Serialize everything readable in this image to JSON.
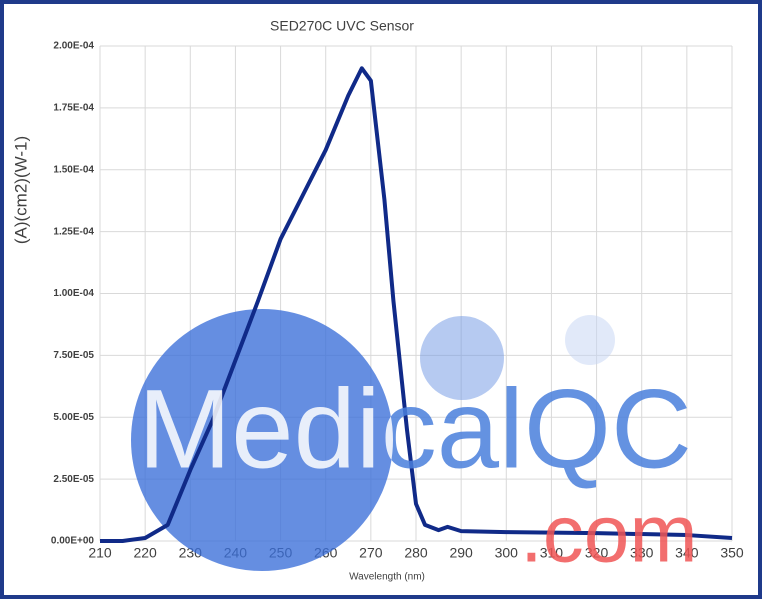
{
  "chart_data": {
    "type": "line",
    "title": "SED270C UVC Sensor",
    "x_label": "Wavelength (nm)",
    "y_label": "(A)(cm2)(W-1)",
    "x": [
      210,
      215,
      220,
      225,
      230,
      235,
      240,
      245,
      250,
      255,
      260,
      265,
      268,
      270,
      273,
      275,
      278,
      280,
      282,
      285,
      287,
      290,
      300,
      320,
      340,
      350
    ],
    "series": [
      {
        "name": "SED270C",
        "color": "#102a88",
        "values": [
          0,
          0,
          1.2e-06,
          6.5e-06,
          2.87e-05,
          4.9e-05,
          7.3e-05,
          9.7e-05,
          0.000122,
          0.00014,
          0.000158,
          0.00018,
          0.000191,
          0.000186,
          0.000138,
          9.7e-05,
          4.5e-05,
          1.5e-05,
          6.5e-06,
          4.4e-06,
          5.7e-06,
          4e-06,
          3.6e-06,
          3.2e-06,
          2.4e-06,
          1.2e-06
        ]
      }
    ],
    "xlim": [
      210,
      350
    ],
    "xticks": [
      210,
      220,
      230,
      240,
      250,
      260,
      270,
      280,
      290,
      300,
      310,
      320,
      330,
      340,
      350
    ],
    "ylim": [
      0,
      0.0002
    ],
    "yticks": [
      {
        "value": 0,
        "label": "0.00E+00"
      },
      {
        "value": 2.5e-05,
        "label": "2.50E-05"
      },
      {
        "value": 5e-05,
        "label": "5.00E-05"
      },
      {
        "value": 7.5e-05,
        "label": "7.50E-05"
      },
      {
        "value": 0.0001,
        "label": "1.00E-04"
      },
      {
        "value": 0.000125,
        "label": "1.25E-04"
      },
      {
        "value": 0.00015,
        "label": "1.50E-04"
      },
      {
        "value": 0.000175,
        "label": "1.75E-04"
      },
      {
        "value": 0.0002,
        "label": "2.00E-04"
      }
    ],
    "grid": true,
    "watermark": {
      "text": "MedicalQC",
      "suffix": ".com"
    }
  }
}
